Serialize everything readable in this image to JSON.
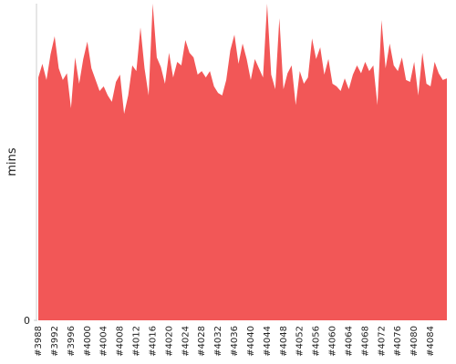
{
  "chart_data": {
    "type": "area",
    "y_label": "mins",
    "color": "#f25757",
    "ylim": [
      0,
      100
    ],
    "yticks": [
      0
    ],
    "categories": [
      "#3988",
      null,
      null,
      null,
      "#3992",
      null,
      null,
      null,
      "#3996",
      null,
      null,
      null,
      "#4000",
      null,
      null,
      null,
      "#4004",
      null,
      null,
      null,
      "#4008",
      null,
      null,
      null,
      "#4012",
      null,
      null,
      null,
      "#4016",
      null,
      null,
      null,
      "#4020",
      null,
      null,
      null,
      "#4024",
      null,
      null,
      null,
      "#4028",
      null,
      null,
      null,
      "#4032",
      null,
      null,
      null,
      "#4036",
      null,
      null,
      null,
      "#4040",
      null,
      null,
      null,
      "#4044",
      null,
      null,
      null,
      "#4048",
      null,
      null,
      null,
      "#4052",
      null,
      null,
      null,
      "#4056",
      null,
      null,
      null,
      "#4060",
      null,
      null,
      null,
      "#4064",
      null,
      null,
      null,
      "#4068",
      null,
      null,
      null,
      "#4072",
      null,
      null,
      null,
      "#4076",
      null,
      null,
      null,
      "#4080",
      null,
      null,
      null,
      "#4084",
      null,
      null,
      null,
      null
    ],
    "values": [
      76.7,
      81,
      75.9,
      84,
      89.7,
      79.6,
      75.9,
      78,
      67,
      83,
      74.7,
      82.5,
      88,
      79.6,
      76,
      72.4,
      73.9,
      71,
      69,
      75.3,
      77.6,
      65.2,
      71,
      80.5,
      78.7,
      92.5,
      79.6,
      71,
      100,
      83,
      80,
      74.7,
      84.5,
      76.7,
      81.6,
      80.5,
      88.5,
      84.5,
      83,
      77.6,
      78.7,
      76.7,
      78.7,
      73.9,
      71.8,
      71,
      75.9,
      85.3,
      90.2,
      81,
      87.4,
      82.5,
      75.9,
      82.5,
      79.6,
      76.7,
      100,
      77.6,
      73,
      95.4,
      73,
      78,
      80.5,
      68,
      78.7,
      74.7,
      76.7,
      89,
      82.5,
      86.2,
      77.6,
      82.5,
      74.7,
      73.9,
      72.4,
      76.4,
      73,
      77.6,
      80.5,
      78,
      81.6,
      78.7,
      80.5,
      68,
      94.8,
      79.6,
      87.4,
      80.5,
      78.7,
      83,
      75.9,
      75.3,
      81.6,
      71,
      84.5,
      74.7,
      73.9,
      81.6,
      78,
      75.9,
      76.4
    ]
  }
}
